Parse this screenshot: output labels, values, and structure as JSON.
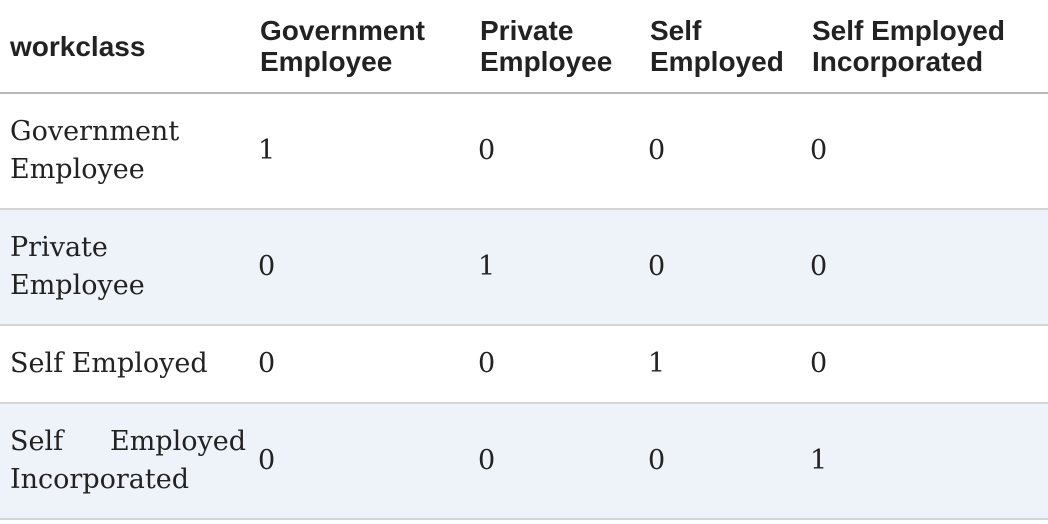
{
  "table": {
    "columns": [
      "workclass",
      "Government Employee",
      "Private Employee",
      "Self Employed",
      "Self Employed Incorporated"
    ],
    "rows": [
      {
        "label": "Government Employee",
        "values": [
          "1",
          "0",
          "0",
          "0"
        ]
      },
      {
        "label": "Private Employee",
        "values": [
          "0",
          "1",
          "0",
          "0"
        ]
      },
      {
        "label": "Self Employed",
        "values": [
          "0",
          "0",
          "1",
          "0"
        ]
      },
      {
        "label": "Self Employed Incorporated",
        "values": [
          "0",
          "0",
          "0",
          "1"
        ]
      }
    ]
  },
  "colors": {
    "text": "#222222",
    "alt_row_background": "#eef3fa",
    "header_rule": "#b9b9b9",
    "row_rule": "#d4d4d4"
  }
}
